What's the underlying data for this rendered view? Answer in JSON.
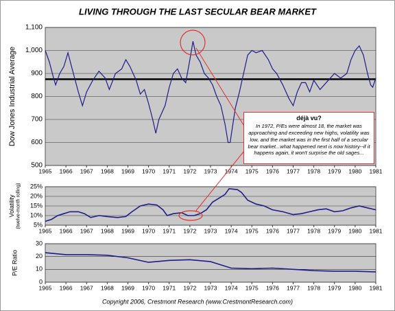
{
  "title": "LIVING THROUGH THE LAST SECULAR BEAR MARKET",
  "footer": "Copyright 2006, Crestmont Research (www.CrestmontResearch.com)",
  "chart_data": [
    {
      "type": "line",
      "ylabel": [
        "Dow Jones Industrial Average"
      ],
      "color": "#1c1c8a",
      "hline": 875,
      "xlim": [
        1965,
        1981
      ],
      "xticks": [
        1965,
        1966,
        1967,
        1968,
        1969,
        1970,
        1971,
        1972,
        1973,
        1974,
        1975,
        1976,
        1977,
        1978,
        1979,
        1980,
        1981
      ],
      "ylim": [
        500,
        1100
      ],
      "yticks": [
        500,
        600,
        700,
        800,
        900,
        {
          "value": 1000,
          "label": "1,000"
        },
        {
          "value": 1100,
          "label": "1,100"
        }
      ],
      "annotation": {
        "title": "déjà vu?",
        "text": "In 1972, P/Es were almost 18, the market was approaching and exceeding new highs, volatility was low, and the market was in the first half of a secular bear market...what happened next is now history--if it happens again, it won't surprise the old sages..."
      },
      "x": [
        1965.0,
        1965.2,
        1965.4,
        1965.5,
        1965.7,
        1965.9,
        1966.1,
        1966.3,
        1966.6,
        1966.8,
        1967.0,
        1967.3,
        1967.6,
        1967.9,
        1968.1,
        1968.4,
        1968.7,
        1968.9,
        1969.1,
        1969.4,
        1969.6,
        1969.8,
        1970.0,
        1970.2,
        1970.35,
        1970.5,
        1970.8,
        1971.0,
        1971.2,
        1971.4,
        1971.6,
        1971.8,
        1972.0,
        1972.15,
        1972.3,
        1972.5,
        1972.7,
        1972.9,
        1973.1,
        1973.3,
        1973.5,
        1973.7,
        1973.85,
        1973.95,
        1974.05,
        1974.2,
        1974.4,
        1974.6,
        1974.8,
        1975.0,
        1975.2,
        1975.5,
        1975.8,
        1976.0,
        1976.2,
        1976.5,
        1976.8,
        1977.0,
        1977.2,
        1977.4,
        1977.6,
        1977.8,
        1978.0,
        1978.3,
        1978.5,
        1978.8,
        1979.0,
        1979.3,
        1979.6,
        1979.8,
        1980.0,
        1980.2,
        1980.4,
        1980.6,
        1980.75,
        1980.85,
        1981.0
      ],
      "values": [
        1000,
        950,
        880,
        850,
        900,
        930,
        990,
        920,
        820,
        760,
        820,
        870,
        910,
        880,
        830,
        900,
        920,
        960,
        930,
        870,
        810,
        830,
        770,
        700,
        640,
        700,
        760,
        840,
        900,
        920,
        880,
        860,
        960,
        1040,
        980,
        950,
        900,
        880,
        850,
        800,
        760,
        680,
        600,
        600,
        660,
        750,
        820,
        900,
        980,
        1000,
        990,
        1000,
        960,
        920,
        900,
        850,
        790,
        760,
        820,
        860,
        860,
        820,
        870,
        830,
        850,
        880,
        900,
        880,
        900,
        960,
        1000,
        1020,
        980,
        900,
        850,
        840,
        880
      ]
    },
    {
      "type": "line",
      "ylabel": [
        "Volatility",
        "(twelve-month rolling)"
      ],
      "color": "#1c1c8a",
      "xlim": [
        1965,
        1981
      ],
      "xticks": [
        1965,
        1966,
        1967,
        1968,
        1969,
        1970,
        1971,
        1972,
        1973,
        1974,
        1975,
        1976,
        1977,
        1978,
        1979,
        1980,
        1981
      ],
      "ylim": [
        5,
        25
      ],
      "yticks": [
        {
          "value": 5,
          "label": "5%"
        },
        {
          "value": 10,
          "label": "10%"
        },
        {
          "value": 15,
          "label": "15%"
        },
        {
          "value": 20,
          "label": "20%"
        },
        {
          "value": 25,
          "label": "25%"
        }
      ],
      "x": [
        1965.0,
        1965.3,
        1965.6,
        1965.9,
        1966.2,
        1966.6,
        1966.9,
        1967.2,
        1967.6,
        1968.0,
        1968.5,
        1968.9,
        1969.2,
        1969.6,
        1970.0,
        1970.4,
        1970.7,
        1970.9,
        1971.2,
        1971.6,
        1971.9,
        1972.2,
        1972.5,
        1972.8,
        1973.1,
        1973.4,
        1973.7,
        1973.9,
        1974.3,
        1974.5,
        1974.8,
        1975.2,
        1975.6,
        1976.0,
        1976.5,
        1977.0,
        1977.4,
        1977.8,
        1978.2,
        1978.6,
        1979.0,
        1979.4,
        1979.8,
        1980.2,
        1980.6,
        1981.0
      ],
      "values": [
        7,
        8,
        10,
        11,
        12,
        12,
        11,
        9,
        10,
        9.5,
        9,
        9.5,
        12,
        15,
        16,
        15.5,
        13,
        10,
        11,
        11.5,
        10,
        10,
        11,
        13,
        17,
        19,
        21,
        24,
        23.5,
        22,
        18,
        16,
        15,
        13,
        12,
        10.5,
        11,
        12,
        13,
        13.5,
        12,
        12.5,
        14,
        15,
        14,
        13
      ]
    },
    {
      "type": "line",
      "ylabel": [
        "P/E Ratio"
      ],
      "color": "#1c1c8a",
      "xlim": [
        1965,
        1981
      ],
      "xticks": [
        1965,
        1966,
        1967,
        1968,
        1969,
        1970,
        1971,
        1972,
        1973,
        1974,
        1975,
        1976,
        1977,
        1978,
        1979,
        1980,
        1981
      ],
      "ylim": [
        0,
        30
      ],
      "yticks": [
        0,
        10,
        20,
        30
      ],
      "x": [
        1965,
        1966,
        1967,
        1968,
        1969,
        1970,
        1971,
        1972,
        1973,
        1974,
        1975,
        1976,
        1977,
        1978,
        1979,
        1980,
        1981
      ],
      "values": [
        23,
        21.5,
        21.5,
        21,
        19,
        15.5,
        17,
        17.5,
        16,
        11,
        10.5,
        11,
        10,
        9,
        8.5,
        8.5,
        8
      ]
    }
  ]
}
